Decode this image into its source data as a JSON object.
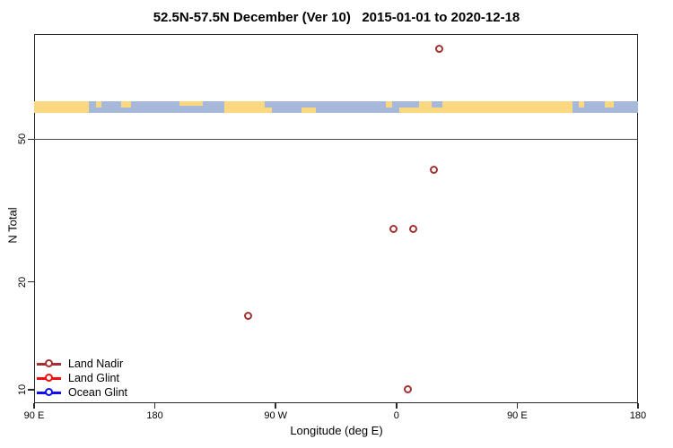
{
  "title": "52.5N-57.5N December (Ver 10)   2015-01-01 to 2020-12-18",
  "chart_data": {
    "type": "scatter",
    "title": "52.5N-57.5N December (Ver 10)   2015-01-01 to 2020-12-18",
    "xlabel": "Longitude (deg E)",
    "ylabel": "N Total",
    "x_axis": {
      "note": "longitude increasing eastward, wraps from 90E through 180, 90W, 0, 90E to 180",
      "range_axis_deg": [
        90,
        540
      ],
      "ticks": [
        {
          "axis_deg": 90,
          "label": "90 E"
        },
        {
          "axis_deg": 180,
          "label": "180"
        },
        {
          "axis_deg": 270,
          "label": "90 W"
        },
        {
          "axis_deg": 360,
          "label": "0"
        },
        {
          "axis_deg": 450,
          "label": "90 E"
        },
        {
          "axis_deg": 540,
          "label": "180"
        }
      ]
    },
    "y_axis": {
      "scale": "log",
      "ticks": [
        {
          "n": 10,
          "label": "10"
        },
        {
          "n": 20,
          "label": "20"
        },
        {
          "n": 50,
          "label": "50"
        }
      ],
      "range": [
        9,
        97
      ]
    },
    "reference_line_n": 50,
    "series": [
      {
        "name": "Land Nadir",
        "color": "#A53030",
        "points": [
          {
            "axis_deg": 392,
            "lon": "32E",
            "n": 89
          },
          {
            "axis_deg": 388,
            "lon": "28E",
            "n": 41
          },
          {
            "axis_deg": 358,
            "lon": "2W",
            "n": 28
          },
          {
            "axis_deg": 373,
            "lon": "13E",
            "n": 28
          },
          {
            "axis_deg": 250,
            "lon": "110W",
            "n": 16
          },
          {
            "axis_deg": 369,
            "lon": "9E",
            "n": 10
          }
        ]
      },
      {
        "name": "Land Glint",
        "color": "#F50D0D",
        "points": []
      },
      {
        "name": "Ocean Glint",
        "color": "#0F0FF0",
        "points": []
      }
    ],
    "legend": {
      "position": "bottom-left",
      "entries": [
        {
          "label": "Land Nadir",
          "color": "#A53030"
        },
        {
          "label": "Land Glint",
          "color": "#F50D0D"
        },
        {
          "label": "Ocean Glint",
          "color": "#0F0FF0"
        }
      ]
    },
    "map_strip": {
      "description": "land/ocean map band for latitude 52.5N-57.5N drawn across plot",
      "land_color": "#FAD781",
      "ocean_color": "#A6B9DA",
      "ocean_segments": [
        {
          "from": 131,
          "to": 148,
          "part": "full"
        },
        {
          "from": 148,
          "to": 232,
          "part": "full"
        },
        {
          "from": 262,
          "to": 289,
          "part": "full"
        },
        {
          "from": 289,
          "to": 300,
          "part": "top"
        },
        {
          "from": 300,
          "to": 362,
          "part": "full"
        },
        {
          "from": 362,
          "to": 377,
          "part": "top"
        },
        {
          "from": 386,
          "to": 394,
          "part": "top"
        },
        {
          "from": 491,
          "to": 508,
          "part": "full"
        },
        {
          "from": 508,
          "to": 540,
          "part": "full"
        }
      ],
      "land_patches": [
        {
          "from": 136,
          "to": 140,
          "part": "top"
        },
        {
          "from": 155,
          "to": 162,
          "part": "top"
        },
        {
          "from": 198,
          "to": 216,
          "part": "topthin"
        },
        {
          "from": 262,
          "to": 267,
          "part": "bottom"
        },
        {
          "from": 352,
          "to": 357,
          "part": "top"
        },
        {
          "from": 496,
          "to": 500,
          "part": "top"
        },
        {
          "from": 515,
          "to": 522,
          "part": "top"
        }
      ]
    }
  }
}
